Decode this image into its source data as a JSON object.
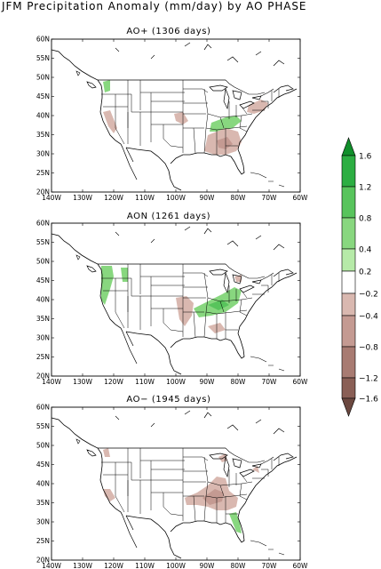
{
  "title": "JFM Precipitation Anomaly (mm/day) by AO PHASE",
  "panels": [
    {
      "title": "AO+ (1306 days)"
    },
    {
      "title": "AON (1261 days)"
    },
    {
      "title": "AO− (1945 days)"
    }
  ],
  "lon_labels": [
    "140W",
    "130W",
    "120W",
    "110W",
    "100W",
    "90W",
    "80W",
    "70W",
    "60W"
  ],
  "lat_labels": [
    "60N",
    "55N",
    "50N",
    "45N",
    "40N",
    "35N",
    "30N",
    "25N",
    "20N"
  ],
  "colorbar": {
    "labels": [
      "1.6",
      "1.2",
      "0.8",
      "0.4",
      "0.2",
      "−0.2",
      "−0.4",
      "−0.8",
      "−1.2",
      "−1.6"
    ],
    "colors": {
      "green_dark": "#118f2b",
      "green_1": "#2cae42",
      "green_2": "#58c45c",
      "green_3": "#88d77f",
      "green_4": "#b6eaa8",
      "white": "#ffffff",
      "brown_1": "#d9b8b0",
      "brown_2": "#c49a92",
      "brown_3": "#a87b72",
      "brown_4": "#8a5f56",
      "brown_dark": "#6b4840"
    }
  }
}
